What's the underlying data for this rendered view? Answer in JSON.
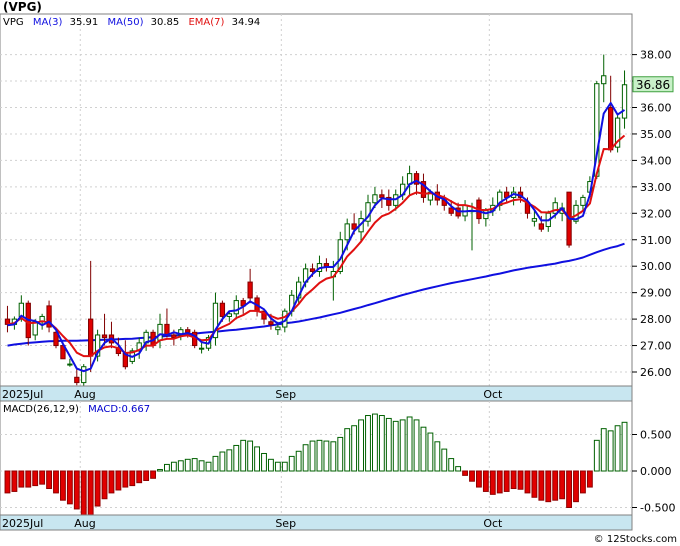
{
  "chart_data": [
    {
      "type": "candlestick",
      "title": "(VPG)",
      "legend": {
        "symbol": "VPG",
        "items": [
          {
            "label": "MA(3)",
            "value": "35.91",
            "color": "#1010e0"
          },
          {
            "label": "MA(50)",
            "value": "30.85",
            "color": "#1010e0"
          },
          {
            "label": "EMA(7)",
            "value": "34.94",
            "color": "#e01010"
          }
        ]
      },
      "last_price": "36.86",
      "y_ticks": [
        "26.00",
        "27.00",
        "28.00",
        "29.00",
        "30.00",
        "31.00",
        "32.00",
        "33.00",
        "34.00",
        "35.00",
        "36.00",
        "37.00",
        "38.00"
      ],
      "y_ticks_num": [
        26,
        27,
        28,
        29,
        30,
        31,
        32,
        33,
        34,
        35,
        36,
        37,
        38
      ],
      "x_labels": [
        {
          "label": "2025Jul",
          "index": 0
        },
        {
          "label": "Aug",
          "index": 11
        },
        {
          "label": "Sep",
          "index": 40
        },
        {
          "label": "Oct",
          "index": 70
        }
      ],
      "candles": [
        [
          28.0,
          28.5,
          27.5,
          27.8
        ],
        [
          27.8,
          28.1,
          27.6,
          28.0
        ],
        [
          28.1,
          28.9,
          27.9,
          28.6
        ],
        [
          28.6,
          28.7,
          27.0,
          27.3
        ],
        [
          27.4,
          28.0,
          27.2,
          27.9
        ],
        [
          27.9,
          28.2,
          27.6,
          28.1
        ],
        [
          28.5,
          28.7,
          27.5,
          27.7
        ],
        [
          27.5,
          27.6,
          26.9,
          27.0
        ],
        [
          27.0,
          27.1,
          26.5,
          26.5
        ],
        [
          26.3,
          26.5,
          26.2,
          26.3
        ],
        [
          25.8,
          26.1,
          25.5,
          25.6
        ],
        [
          25.6,
          26.3,
          25.4,
          26.2
        ],
        [
          28.0,
          30.2,
          26.0,
          26.6
        ],
        [
          26.6,
          27.6,
          26.4,
          27.4
        ],
        [
          27.4,
          28.2,
          27.0,
          27.3
        ],
        [
          27.4,
          27.9,
          26.9,
          27.1
        ],
        [
          26.9,
          27.3,
          26.6,
          26.7
        ],
        [
          26.7,
          27.2,
          26.1,
          26.2
        ],
        [
          26.4,
          26.9,
          26.3,
          26.8
        ],
        [
          26.8,
          27.3,
          26.5,
          27.1
        ],
        [
          27.1,
          27.6,
          26.8,
          27.5
        ],
        [
          27.5,
          27.6,
          26.9,
          27.0
        ],
        [
          27.2,
          28.2,
          26.9,
          27.8
        ],
        [
          27.8,
          28.4,
          27.3,
          27.4
        ],
        [
          27.4,
          27.6,
          27.0,
          27.3
        ],
        [
          27.4,
          27.7,
          27.2,
          27.6
        ],
        [
          27.6,
          27.7,
          27.3,
          27.5
        ],
        [
          27.5,
          27.6,
          26.9,
          27.0
        ],
        [
          26.9,
          27.1,
          26.7,
          26.9
        ],
        [
          26.9,
          27.4,
          26.8,
          27.3
        ],
        [
          27.3,
          29.0,
          27.0,
          28.6
        ],
        [
          28.6,
          28.7,
          27.9,
          28.1
        ],
        [
          28.1,
          28.3,
          27.9,
          28.2
        ],
        [
          28.2,
          28.9,
          28.0,
          28.7
        ],
        [
          28.7,
          28.8,
          28.2,
          28.5
        ],
        [
          29.4,
          29.9,
          28.6,
          28.8
        ],
        [
          28.8,
          28.9,
          28.1,
          28.3
        ],
        [
          28.3,
          28.4,
          27.8,
          28.0
        ],
        [
          27.9,
          28.2,
          27.6,
          27.8
        ],
        [
          27.6,
          27.9,
          27.4,
          27.7
        ],
        [
          27.7,
          28.4,
          27.5,
          28.3
        ],
        [
          28.3,
          29.1,
          28.1,
          28.9
        ],
        [
          28.8,
          29.6,
          28.6,
          29.4
        ],
        [
          29.4,
          30.1,
          29.2,
          29.9
        ],
        [
          29.9,
          30.1,
          29.6,
          29.8
        ],
        [
          29.8,
          30.4,
          29.6,
          30.1
        ],
        [
          30.1,
          30.3,
          29.8,
          30.0
        ],
        [
          29.6,
          30.2,
          28.7,
          29.8
        ],
        [
          29.8,
          31.3,
          29.7,
          31.0
        ],
        [
          31.0,
          31.8,
          30.6,
          31.6
        ],
        [
          31.6,
          32.0,
          31.2,
          31.4
        ],
        [
          31.3,
          32.1,
          30.9,
          31.8
        ],
        [
          31.7,
          32.7,
          31.5,
          32.4
        ],
        [
          32.4,
          33.0,
          32.2,
          32.7
        ],
        [
          32.7,
          32.9,
          32.2,
          32.6
        ],
        [
          32.6,
          32.9,
          32.1,
          32.3
        ],
        [
          32.3,
          32.9,
          32.1,
          32.7
        ],
        [
          32.7,
          33.4,
          32.5,
          33.1
        ],
        [
          33.1,
          33.8,
          32.7,
          33.5
        ],
        [
          33.5,
          33.6,
          32.7,
          33.1
        ],
        [
          33.2,
          33.5,
          32.4,
          32.6
        ],
        [
          32.5,
          32.9,
          32.3,
          32.8
        ],
        [
          32.8,
          33.1,
          32.3,
          32.5
        ],
        [
          32.5,
          32.7,
          32.1,
          32.3
        ],
        [
          32.2,
          32.5,
          31.9,
          32.0
        ],
        [
          32.2,
          32.4,
          31.8,
          31.9
        ],
        [
          31.9,
          32.5,
          31.7,
          32.3
        ],
        [
          32.1,
          32.4,
          30.6,
          32.1
        ],
        [
          32.5,
          32.6,
          31.6,
          31.8
        ],
        [
          31.8,
          32.2,
          31.5,
          32.1
        ],
        [
          32.1,
          32.6,
          31.9,
          32.3
        ],
        [
          32.3,
          32.9,
          32.1,
          32.8
        ],
        [
          32.8,
          33.0,
          32.4,
          32.6
        ],
        [
          32.6,
          33.0,
          32.3,
          32.8
        ],
        [
          32.8,
          33.0,
          32.4,
          32.6
        ],
        [
          32.4,
          32.6,
          31.8,
          32.0
        ],
        [
          31.7,
          32.1,
          31.5,
          31.8
        ],
        [
          31.6,
          31.9,
          31.3,
          31.4
        ],
        [
          31.5,
          32.1,
          31.3,
          32.0
        ],
        [
          32.0,
          32.6,
          31.8,
          32.4
        ],
        [
          32.0,
          32.4,
          31.7,
          32.2
        ],
        [
          32.8,
          32.8,
          30.7,
          30.8
        ],
        [
          31.7,
          32.5,
          31.6,
          32.3
        ],
        [
          32.3,
          32.7,
          32.1,
          32.6
        ],
        [
          32.8,
          33.4,
          32.6,
          33.2
        ],
        [
          33.4,
          37.0,
          33.3,
          36.9
        ],
        [
          36.9,
          38.0,
          36.2,
          37.2
        ],
        [
          36.0,
          37.2,
          34.3,
          34.4
        ],
        [
          34.5,
          35.7,
          34.3,
          35.6
        ],
        [
          35.6,
          37.4,
          35.2,
          36.86
        ]
      ],
      "ma3": [
        27.77,
        27.8,
        28.13,
        27.97,
        27.93,
        27.77,
        27.9,
        27.6,
        27.07,
        26.6,
        26.13,
        26.03,
        26.13,
        26.73,
        27.1,
        27.27,
        27.03,
        26.67,
        26.57,
        26.7,
        27.13,
        27.2,
        27.43,
        27.4,
        27.5,
        27.43,
        27.47,
        27.37,
        27.13,
        27.07,
        27.6,
        28.0,
        28.3,
        28.33,
        28.47,
        28.67,
        28.53,
        28.37,
        28.03,
        27.83,
        27.93,
        28.3,
        28.87,
        29.4,
        29.7,
        29.93,
        29.97,
        29.97,
        30.27,
        30.8,
        31.33,
        31.6,
        31.87,
        32.3,
        32.57,
        32.53,
        32.53,
        32.7,
        33.1,
        33.23,
        33.07,
        32.83,
        32.63,
        32.53,
        32.27,
        32.07,
        32.07,
        32.1,
        32.07,
        32.0,
        32.07,
        32.4,
        32.57,
        32.73,
        32.67,
        32.47,
        32.13,
        31.73,
        31.73,
        31.93,
        32.2,
        31.8,
        31.77,
        31.9,
        32.7,
        34.23,
        35.77,
        36.17,
        35.73,
        35.91
      ],
      "ema7": [
        27.8,
        27.85,
        28.04,
        27.85,
        27.86,
        27.92,
        27.87,
        27.65,
        27.36,
        27.1,
        26.73,
        26.6,
        26.6,
        26.8,
        26.93,
        26.97,
        26.9,
        26.72,
        26.74,
        26.83,
        27.0,
        27.0,
        27.2,
        27.25,
        27.26,
        27.35,
        27.39,
        27.3,
        27.2,
        27.22,
        27.57,
        27.7,
        27.82,
        28.04,
        28.15,
        28.31,
        28.31,
        28.23,
        28.12,
        28.01,
        28.08,
        28.29,
        28.57,
        28.9,
        29.12,
        29.37,
        29.53,
        29.6,
        29.95,
        30.37,
        30.63,
        30.93,
        31.3,
        31.65,
        31.89,
        31.99,
        32.17,
        32.4,
        32.68,
        32.79,
        32.74,
        32.76,
        32.7,
        32.6,
        32.45,
        32.31,
        32.31,
        32.25,
        32.13,
        32.12,
        32.17,
        32.33,
        32.4,
        32.5,
        32.53,
        32.4,
        32.25,
        32.04,
        32.03,
        32.12,
        32.14,
        31.8,
        31.92,
        32.09,
        32.37,
        33.5,
        34.43,
        34.42,
        34.72,
        34.94
      ],
      "ma50": [
        27.0,
        27.04,
        27.07,
        27.1,
        27.12,
        27.14,
        27.16,
        27.17,
        27.18,
        27.18,
        27.18,
        27.19,
        27.2,
        27.21,
        27.22,
        27.23,
        27.24,
        27.25,
        27.26,
        27.28,
        27.3,
        27.32,
        27.34,
        27.36,
        27.38,
        27.4,
        27.42,
        27.45,
        27.48,
        27.5,
        27.52,
        27.55,
        27.58,
        27.6,
        27.63,
        27.66,
        27.69,
        27.72,
        27.76,
        27.8,
        27.84,
        27.87,
        27.91,
        27.96,
        28.01,
        28.06,
        28.12,
        28.18,
        28.24,
        28.31,
        28.38,
        28.45,
        28.53,
        28.6,
        28.68,
        28.76,
        28.83,
        28.91,
        28.98,
        29.05,
        29.12,
        29.18,
        29.24,
        29.3,
        29.36,
        29.41,
        29.46,
        29.51,
        29.56,
        29.61,
        29.67,
        29.72,
        29.78,
        29.84,
        29.89,
        29.94,
        29.98,
        30.02,
        30.06,
        30.1,
        30.16,
        30.2,
        30.26,
        30.33,
        30.43,
        30.53,
        30.62,
        30.7,
        30.76,
        30.85
      ]
    },
    {
      "type": "bar",
      "legend": [
        {
          "label": "MACD(26,12,9)",
          "color": "#000000"
        },
        {
          "label": "MACD:0.667",
          "color": "#0000cc"
        }
      ],
      "y_ticks": [
        "-0.500",
        "0.000",
        "0.500"
      ],
      "y_ticks_num": [
        -0.5,
        0.0,
        0.5
      ],
      "x_labels": [
        {
          "label": "2025Jul",
          "index": 0
        },
        {
          "label": "Aug",
          "index": 11
        },
        {
          "label": "Sep",
          "index": 40
        },
        {
          "label": "Oct",
          "index": 70
        }
      ],
      "values": [
        -0.3,
        -0.28,
        -0.22,
        -0.22,
        -0.2,
        -0.18,
        -0.24,
        -0.3,
        -0.4,
        -0.45,
        -0.52,
        -0.62,
        -0.62,
        -0.48,
        -0.38,
        -0.3,
        -0.26,
        -0.22,
        -0.2,
        -0.16,
        -0.13,
        -0.1,
        0.02,
        0.09,
        0.12,
        0.14,
        0.16,
        0.17,
        0.14,
        0.12,
        0.2,
        0.26,
        0.29,
        0.35,
        0.42,
        0.41,
        0.33,
        0.24,
        0.16,
        0.12,
        0.12,
        0.2,
        0.27,
        0.36,
        0.41,
        0.42,
        0.41,
        0.4,
        0.46,
        0.58,
        0.62,
        0.7,
        0.76,
        0.78,
        0.76,
        0.72,
        0.68,
        0.7,
        0.74,
        0.7,
        0.6,
        0.52,
        0.4,
        0.3,
        0.17,
        0.06,
        -0.06,
        -0.14,
        -0.22,
        -0.28,
        -0.32,
        -0.3,
        -0.28,
        -0.24,
        -0.25,
        -0.3,
        -0.36,
        -0.4,
        -0.42,
        -0.4,
        -0.38,
        -0.5,
        -0.42,
        -0.3,
        -0.22,
        0.42,
        0.58,
        0.55,
        0.62,
        0.667
      ]
    }
  ],
  "watermark": "© 12Stocks.com"
}
